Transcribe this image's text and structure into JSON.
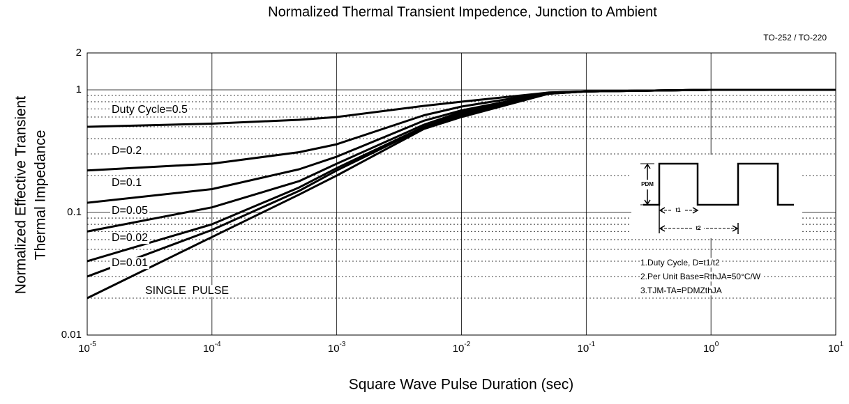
{
  "chart_data": {
    "type": "line",
    "title": "Normalized Thermal Transient Impedence, Junction to Ambient",
    "subtitle": "TO-252 / TO-220",
    "xlabel": "Square Wave Pulse Duration (sec)",
    "ylabel": [
      "Normalized Effective Transient",
      "Thermal Impedance"
    ],
    "log_x": true,
    "log_y": true,
    "grid": true,
    "minor_grid": true,
    "xlim": [
      1e-05,
      10
    ],
    "xticks": [
      {
        "value": 1e-05,
        "label": "10-5"
      },
      {
        "value": 0.0001,
        "label": "10-4"
      },
      {
        "value": 0.001,
        "label": "10-3"
      },
      {
        "value": 0.01,
        "label": "10-2"
      },
      {
        "value": 0.1,
        "label": "10-1"
      },
      {
        "value": 1,
        "label": "100"
      },
      {
        "value": 10,
        "label": "101"
      }
    ],
    "ylim": [
      0.01,
      2
    ],
    "yticks": [
      0.01,
      0.1,
      1,
      2
    ],
    "x": [
      1e-05,
      0.0001,
      0.0005,
      0.001,
      0.005,
      0.01,
      0.05,
      0.1,
      1,
      10
    ],
    "series": [
      {
        "name": "Duty Cycle=0.5",
        "color": "#000000",
        "values": [
          0.5,
          0.53,
          0.57,
          0.6,
          0.74,
          0.8,
          0.95,
          0.97,
          1,
          1
        ]
      },
      {
        "name": "D=0.2",
        "color": "#000000",
        "values": [
          0.22,
          0.25,
          0.31,
          0.36,
          0.62,
          0.73,
          0.95,
          0.97,
          1,
          1
        ]
      },
      {
        "name": "D=0.1",
        "color": "#000000",
        "values": [
          0.12,
          0.155,
          0.225,
          0.285,
          0.56,
          0.68,
          0.94,
          0.97,
          1,
          1
        ]
      },
      {
        "name": "D=0.05",
        "color": "#000000",
        "values": [
          0.07,
          0.11,
          0.18,
          0.25,
          0.52,
          0.66,
          0.94,
          0.97,
          1,
          1
        ]
      },
      {
        "name": "D=0.02",
        "color": "#000000",
        "values": [
          0.04,
          0.08,
          0.16,
          0.23,
          0.5,
          0.64,
          0.93,
          0.97,
          1,
          1
        ]
      },
      {
        "name": "D=0.01",
        "color": "#000000",
        "values": [
          0.03,
          0.072,
          0.15,
          0.22,
          0.49,
          0.62,
          0.93,
          0.97,
          1,
          1
        ]
      },
      {
        "name": "SINGLE  PULSE",
        "color": "#000000",
        "values": [
          0.02,
          0.063,
          0.14,
          0.2,
          0.48,
          0.6,
          0.93,
          0.97,
          1,
          1
        ]
      }
    ],
    "inset_labels": {
      "pdm": "PDM",
      "t1": "t1",
      "t2": "t2"
    },
    "notes": [
      "1.Duty Cycle, D=t1/t2",
      "2.Per Unit Base=RthJA=50°C/W",
      "3.TJM-TA=PDMZthJA"
    ]
  }
}
